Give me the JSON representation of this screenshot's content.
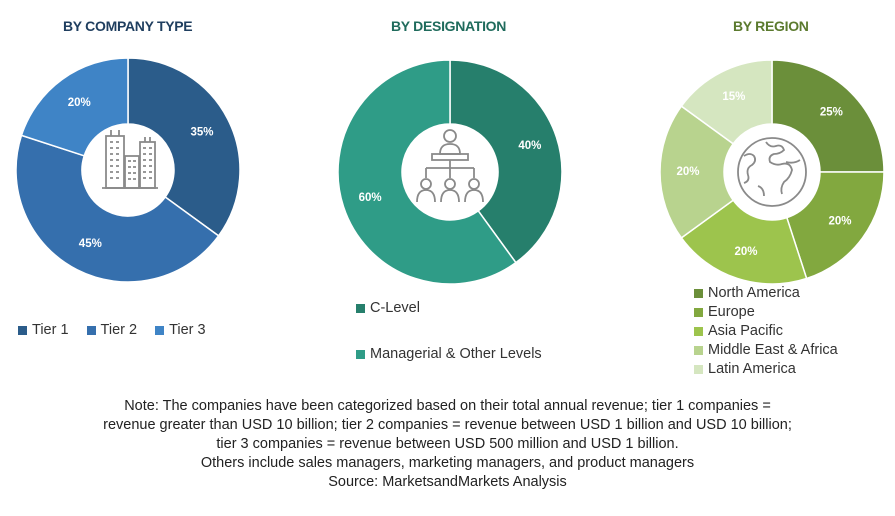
{
  "chart_data": [
    {
      "type": "pie",
      "title": "BY COMPANY TYPE",
      "categories": [
        "Tier 1",
        "Tier 2",
        "Tier 3"
      ],
      "values": [
        35,
        45,
        20
      ],
      "labels": [
        "35%",
        "45%",
        "20%"
      ],
      "colors": [
        "#2b5c8a",
        "#356fad",
        "#3f84c6"
      ],
      "title_color": "#1f3e5f",
      "legend_placement": "bottom",
      "icon": "buildings-icon"
    },
    {
      "type": "pie",
      "title": "BY DESIGNATION",
      "categories": [
        "C-Level",
        "Managerial & Other Levels"
      ],
      "values": [
        40,
        60
      ],
      "labels": [
        "40%",
        "60%"
      ],
      "colors": [
        "#267f6c",
        "#2f9c87"
      ],
      "title_color": "#1f6b5c",
      "legend_placement": "bottom",
      "icon": "hierarchy-people-icon"
    },
    {
      "type": "pie",
      "title": "BY REGION",
      "categories": [
        "North America",
        "Europe",
        "Asia Pacific",
        "Middle East & Africa",
        "Latin America"
      ],
      "values": [
        25,
        20,
        20,
        20,
        15
      ],
      "labels": [
        "25%",
        "20%",
        "20%",
        "20%",
        "15%"
      ],
      "colors": [
        "#6b8f3a",
        "#82a83f",
        "#9dc44d",
        "#b8d38e",
        "#d5e6c0"
      ],
      "title_color": "#5b7a2e",
      "legend_placement": "bottom",
      "icon": "globe-icon"
    }
  ],
  "notes": [
    "Note: The companies have been categorized based on their total annual revenue; tier 1 companies =",
    "revenue greater than USD 10 billion; tier 2 companies = revenue between USD 1 billion and USD 10 billion;",
    "tier 3 companies = revenue between USD 500 million and USD 1 billion.",
    "Others include sales managers, marketing managers, and product managers",
    "Source: MarketsandMarkets Analysis"
  ]
}
